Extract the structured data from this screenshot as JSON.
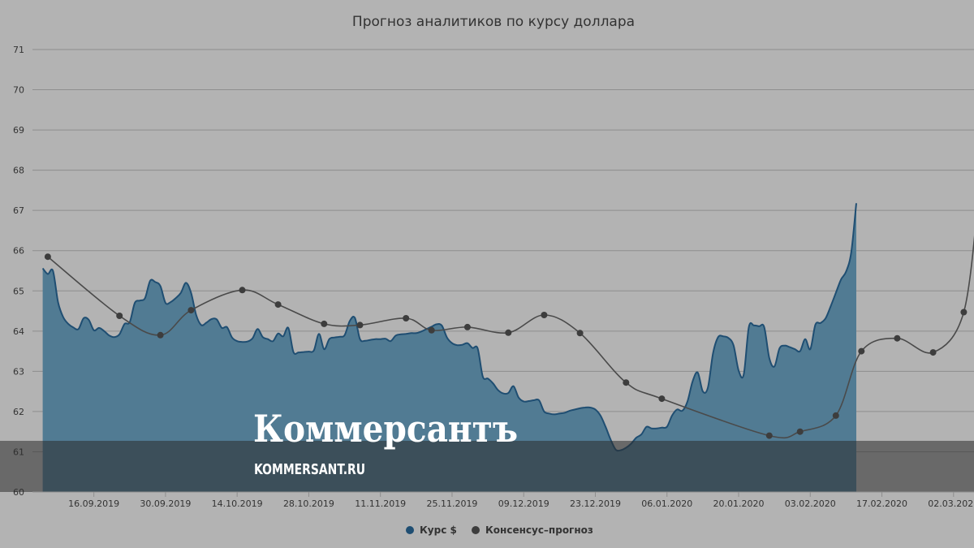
{
  "chart_data": {
    "type": "area",
    "title": "Прогноз аналитиков по курсу доллара",
    "ylim": [
      60,
      71
    ],
    "yticks": [
      60,
      61,
      62,
      63,
      64,
      65,
      66,
      67,
      68,
      69,
      70,
      71
    ],
    "x_tick_labels": [
      "16.09.2019",
      "30.09.2019",
      "14.10.2019",
      "28.10.2019",
      "11.11.2019",
      "25.11.2019",
      "09.12.2019",
      "23.12.2019",
      "06.01.2020",
      "20.01.2020",
      "03.02.2020",
      "17.02.2020",
      "02.03.2020"
    ],
    "xlim": [
      "2019-09-04",
      "2020-03-06"
    ],
    "grid": true,
    "legend_position": "bottom-center",
    "series": [
      {
        "name": "Курс $",
        "color": "#1f4e72",
        "fill": "#517b93",
        "points": [
          [
            "2019-09-06",
            65.56
          ],
          [
            "2019-09-07",
            65.42
          ],
          [
            "2019-09-08",
            65.5
          ],
          [
            "2019-09-09",
            64.72
          ],
          [
            "2019-09-10",
            64.35
          ],
          [
            "2019-09-11",
            64.18
          ],
          [
            "2019-09-12",
            64.09
          ],
          [
            "2019-09-13",
            64.05
          ],
          [
            "2019-09-14",
            64.32
          ],
          [
            "2019-09-15",
            64.28
          ],
          [
            "2019-09-16",
            64.02
          ],
          [
            "2019-09-17",
            64.08
          ],
          [
            "2019-09-18",
            64.0
          ],
          [
            "2019-09-19",
            63.89
          ],
          [
            "2019-09-20",
            63.85
          ],
          [
            "2019-09-21",
            63.92
          ],
          [
            "2019-09-22",
            64.18
          ],
          [
            "2019-09-23",
            64.22
          ],
          [
            "2019-09-24",
            64.7
          ],
          [
            "2019-09-25",
            64.76
          ],
          [
            "2019-09-26",
            64.82
          ],
          [
            "2019-09-27",
            65.25
          ],
          [
            "2019-09-28",
            65.22
          ],
          [
            "2019-09-29",
            65.12
          ],
          [
            "2019-09-30",
            64.7
          ],
          [
            "2019-10-01",
            64.72
          ],
          [
            "2019-10-02",
            64.82
          ],
          [
            "2019-10-03",
            64.95
          ],
          [
            "2019-10-04",
            65.2
          ],
          [
            "2019-10-05",
            64.95
          ],
          [
            "2019-10-06",
            64.4
          ],
          [
            "2019-10-07",
            64.15
          ],
          [
            "2019-10-08",
            64.21
          ],
          [
            "2019-10-09",
            64.3
          ],
          [
            "2019-10-10",
            64.29
          ],
          [
            "2019-10-11",
            64.08
          ],
          [
            "2019-10-12",
            64.1
          ],
          [
            "2019-10-13",
            63.84
          ],
          [
            "2019-10-14",
            63.75
          ],
          [
            "2019-10-15",
            63.73
          ],
          [
            "2019-10-16",
            63.74
          ],
          [
            "2019-10-17",
            63.82
          ],
          [
            "2019-10-18",
            64.05
          ],
          [
            "2019-10-19",
            63.85
          ],
          [
            "2019-10-20",
            63.8
          ],
          [
            "2019-10-21",
            63.75
          ],
          [
            "2019-10-22",
            63.94
          ],
          [
            "2019-10-23",
            63.87
          ],
          [
            "2019-10-24",
            64.08
          ],
          [
            "2019-10-25",
            63.48
          ],
          [
            "2019-10-26",
            63.47
          ],
          [
            "2019-10-27",
            63.48
          ],
          [
            "2019-10-28",
            63.49
          ],
          [
            "2019-10-29",
            63.52
          ],
          [
            "2019-10-30",
            63.93
          ],
          [
            "2019-10-31",
            63.55
          ],
          [
            "2019-11-01",
            63.8
          ],
          [
            "2019-11-02",
            63.84
          ],
          [
            "2019-11-03",
            63.86
          ],
          [
            "2019-11-04",
            63.9
          ],
          [
            "2019-11-05",
            64.25
          ],
          [
            "2019-11-06",
            64.33
          ],
          [
            "2019-11-07",
            63.8
          ],
          [
            "2019-11-08",
            63.76
          ],
          [
            "2019-11-09",
            63.78
          ],
          [
            "2019-11-10",
            63.8
          ],
          [
            "2019-11-11",
            63.8
          ],
          [
            "2019-11-12",
            63.81
          ],
          [
            "2019-11-13",
            63.75
          ],
          [
            "2019-11-14",
            63.89
          ],
          [
            "2019-11-15",
            63.92
          ],
          [
            "2019-11-16",
            63.93
          ],
          [
            "2019-11-17",
            63.95
          ],
          [
            "2019-11-18",
            63.95
          ],
          [
            "2019-11-19",
            63.99
          ],
          [
            "2019-11-20",
            64.05
          ],
          [
            "2019-11-21",
            64.11
          ],
          [
            "2019-11-22",
            64.17
          ],
          [
            "2019-11-23",
            64.14
          ],
          [
            "2019-11-24",
            63.84
          ],
          [
            "2019-11-25",
            63.7
          ],
          [
            "2019-11-26",
            63.65
          ],
          [
            "2019-11-27",
            63.66
          ],
          [
            "2019-11-28",
            63.7
          ],
          [
            "2019-11-29",
            63.58
          ],
          [
            "2019-11-30",
            63.57
          ],
          [
            "2019-12-01",
            62.87
          ],
          [
            "2019-12-02",
            62.82
          ],
          [
            "2019-12-03",
            62.7
          ],
          [
            "2019-12-04",
            62.53
          ],
          [
            "2019-12-05",
            62.45
          ],
          [
            "2019-12-06",
            62.46
          ],
          [
            "2019-12-07",
            62.63
          ],
          [
            "2019-12-08",
            62.35
          ],
          [
            "2019-12-09",
            62.25
          ],
          [
            "2019-12-10",
            62.26
          ],
          [
            "2019-12-11",
            62.28
          ],
          [
            "2019-12-12",
            62.28
          ],
          [
            "2019-12-13",
            62.0
          ],
          [
            "2019-12-14",
            61.95
          ],
          [
            "2019-12-15",
            61.93
          ],
          [
            "2019-12-16",
            61.95
          ],
          [
            "2019-12-17",
            61.97
          ],
          [
            "2019-12-18",
            62.02
          ],
          [
            "2019-12-19",
            62.05
          ],
          [
            "2019-12-20",
            62.08
          ],
          [
            "2019-12-21",
            62.1
          ],
          [
            "2019-12-22",
            62.1
          ],
          [
            "2019-12-23",
            62.05
          ],
          [
            "2019-12-24",
            61.9
          ],
          [
            "2019-12-25",
            61.62
          ],
          [
            "2019-12-26",
            61.3
          ],
          [
            "2019-12-27",
            61.05
          ],
          [
            "2019-12-28",
            61.04
          ],
          [
            "2019-12-29",
            61.1
          ],
          [
            "2019-12-30",
            61.2
          ],
          [
            "2019-12-31",
            61.35
          ],
          [
            "2020-01-01",
            61.43
          ],
          [
            "2020-01-02",
            61.62
          ],
          [
            "2020-01-03",
            61.58
          ],
          [
            "2020-01-04",
            61.58
          ],
          [
            "2020-01-05",
            61.6
          ],
          [
            "2020-01-06",
            61.62
          ],
          [
            "2020-01-07",
            61.9
          ],
          [
            "2020-01-08",
            62.05
          ],
          [
            "2020-01-09",
            62.02
          ],
          [
            "2020-01-10",
            62.25
          ],
          [
            "2020-01-11",
            62.75
          ],
          [
            "2020-01-12",
            62.97
          ],
          [
            "2020-01-13",
            62.5
          ],
          [
            "2020-01-14",
            62.6
          ],
          [
            "2020-01-15",
            63.45
          ],
          [
            "2020-01-16",
            63.85
          ],
          [
            "2020-01-17",
            63.87
          ],
          [
            "2020-01-18",
            63.83
          ],
          [
            "2020-01-19",
            63.65
          ],
          [
            "2020-01-20",
            63.02
          ],
          [
            "2020-01-21",
            62.92
          ],
          [
            "2020-01-22",
            64.1
          ],
          [
            "2020-01-23",
            64.14
          ],
          [
            "2020-01-24",
            64.12
          ],
          [
            "2020-01-25",
            64.1
          ],
          [
            "2020-01-26",
            63.33
          ],
          [
            "2020-01-27",
            63.12
          ],
          [
            "2020-01-28",
            63.57
          ],
          [
            "2020-01-29",
            63.64
          ],
          [
            "2020-01-30",
            63.6
          ],
          [
            "2020-01-31",
            63.55
          ],
          [
            "2020-02-01",
            63.5
          ],
          [
            "2020-02-02",
            63.8
          ],
          [
            "2020-02-03",
            63.55
          ],
          [
            "2020-02-04",
            64.16
          ],
          [
            "2020-02-05",
            64.2
          ],
          [
            "2020-02-06",
            64.32
          ],
          [
            "2020-02-07",
            64.62
          ],
          [
            "2020-02-08",
            64.95
          ],
          [
            "2020-02-09",
            65.28
          ],
          [
            "2020-02-10",
            65.48
          ],
          [
            "2020-02-11",
            65.95
          ],
          [
            "2020-02-12",
            67.18
          ]
        ]
      },
      {
        "name": "Консенсус–прогноз",
        "color": "#4a4a4a",
        "marker_color": "#3d3d3d",
        "points": [
          [
            "2019-09-07",
            65.85
          ],
          [
            "2019-09-21",
            64.38
          ],
          [
            "2019-09-29",
            63.9
          ],
          [
            "2019-10-05",
            64.52
          ],
          [
            "2019-10-15",
            65.02
          ],
          [
            "2019-10-22",
            64.66
          ],
          [
            "2019-10-31",
            64.18
          ],
          [
            "2019-11-07",
            64.15
          ],
          [
            "2019-11-16",
            64.32
          ],
          [
            "2019-11-21",
            64.02
          ],
          [
            "2019-11-28",
            64.1
          ],
          [
            "2019-12-06",
            63.96
          ],
          [
            "2019-12-13",
            64.4
          ],
          [
            "2019-12-20",
            63.95
          ],
          [
            "2019-12-29",
            62.72
          ],
          [
            "2020-01-05",
            62.32
          ],
          [
            "2020-01-26",
            61.4
          ],
          [
            "2020-02-01",
            61.5
          ],
          [
            "2020-02-08",
            61.9
          ],
          [
            "2020-02-13",
            63.5
          ],
          [
            "2020-02-20",
            63.82
          ],
          [
            "2020-02-27",
            63.47
          ],
          [
            "2020-03-04",
            64.47
          ],
          [
            "2020-03-07",
            67.52
          ]
        ]
      }
    ]
  },
  "watermark": {
    "name": "Коммерсантъ",
    "url": "KOMMERSANT.RU"
  },
  "colors": {
    "background": "#b3b3b3",
    "grid": "#8e8e8e",
    "band": "#2b2b2b"
  }
}
